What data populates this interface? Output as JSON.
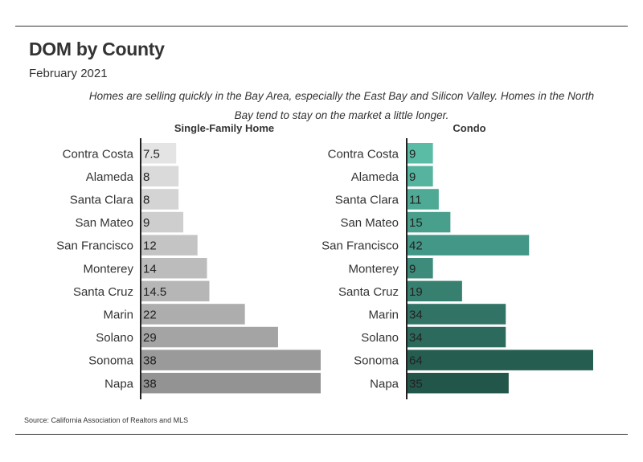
{
  "header": {
    "title": "DOM by County",
    "subtitle": "February 2021",
    "caption": "Homes are selling quickly in the Bay Area, especially the East Bay and Silicon Valley. Homes in the North Bay tend to stay on the market a little longer."
  },
  "footer": {
    "source": "Source:  California Association of Realtors and MLS"
  },
  "chart_data": [
    {
      "type": "bar",
      "orientation": "horizontal",
      "title": "Single-Family Home",
      "categories": [
        "Contra Costa",
        "Alameda",
        "Santa Clara",
        "San Mateo",
        "San Francisco",
        "Monterey",
        "Santa Cruz",
        "Marin",
        "Solano",
        "Sonoma",
        "Napa"
      ],
      "values": [
        7.5,
        8,
        8,
        9,
        12,
        14,
        14.5,
        22,
        29,
        38,
        38
      ],
      "labels": [
        "7.5",
        "8",
        "8",
        "9",
        "12",
        "14",
        "14.5",
        "22",
        "29",
        "38",
        "38"
      ],
      "xlim": [
        0,
        38
      ],
      "colors": [
        "#e4e4e4",
        "#dadada",
        "#d4d4d4",
        "#cecece",
        "#c4c4c4",
        "#bcbcbc",
        "#b6b6b6",
        "#adadad",
        "#a4a4a4",
        "#9a9a9a",
        "#939393"
      ]
    },
    {
      "type": "bar",
      "orientation": "horizontal",
      "title": "Condo",
      "categories": [
        "Contra Costa",
        "Alameda",
        "Santa Clara",
        "San Mateo",
        "San Francisco",
        "Monterey",
        "Santa Cruz",
        "Marin",
        "Solano",
        "Sonoma",
        "Napa"
      ],
      "values": [
        9,
        9,
        11,
        15,
        42,
        9,
        19,
        34,
        34,
        64,
        35
      ],
      "labels": [
        "9",
        "9",
        "11",
        "15",
        "42",
        "9",
        "19",
        "34",
        "34",
        "64",
        "35"
      ],
      "xlim": [
        0,
        64
      ],
      "colors": [
        "#5bbca6",
        "#55b39e",
        "#4eaa95",
        "#48a08c",
        "#439786",
        "#3c8b7b",
        "#378070",
        "#317365",
        "#2c6a5d",
        "#255e51",
        "#22564a"
      ]
    }
  ]
}
